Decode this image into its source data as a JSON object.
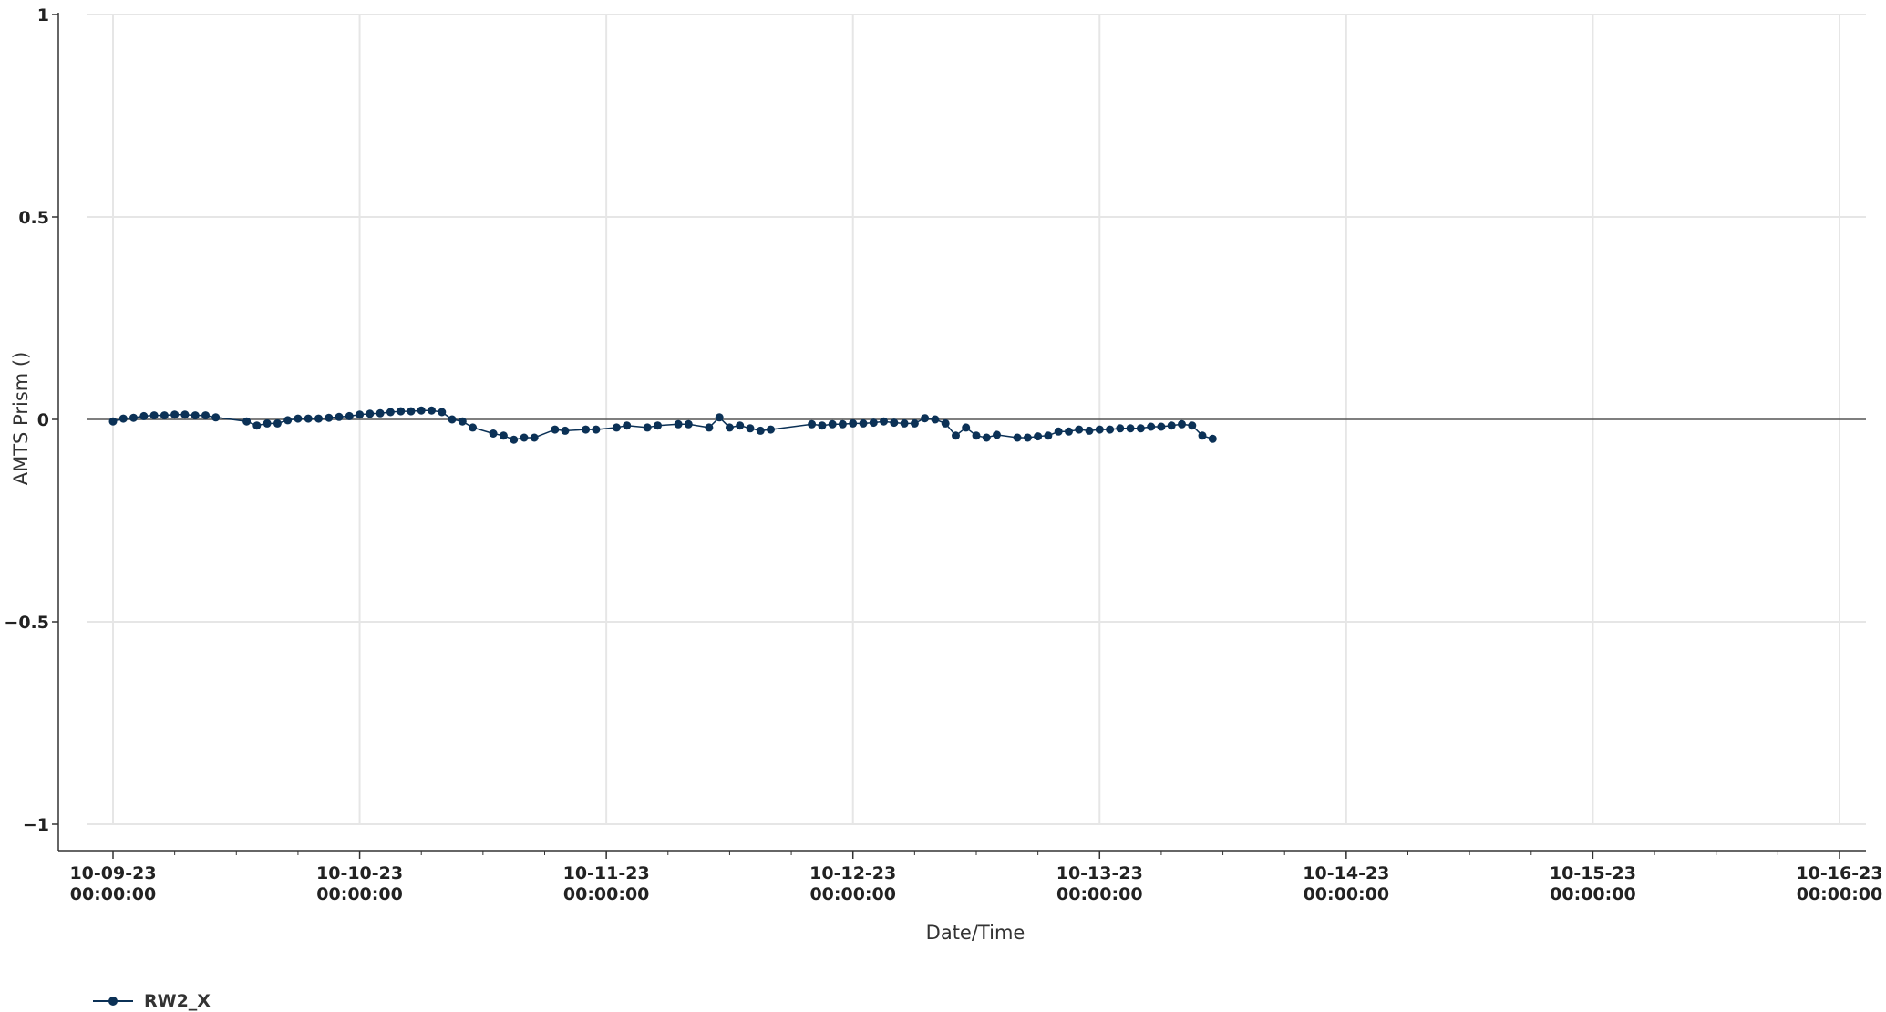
{
  "chart_data": {
    "type": "line",
    "xlabel": "Date/Time",
    "ylabel": "AMTS Prism ()",
    "xlim": [
      "10-09-23 00:00:00",
      "10-16-23 00:00:00"
    ],
    "ylim": [
      -1,
      1
    ],
    "y_ticks": [
      1,
      0.5,
      0,
      -0.5,
      -1
    ],
    "y_tick_labels": [
      "1",
      "0.5",
      "0",
      "−0.5",
      "−1"
    ],
    "x_ticks": [
      {
        "date": "10-09-23",
        "time": "00:00:00"
      },
      {
        "date": "10-10-23",
        "time": "00:00:00"
      },
      {
        "date": "10-11-23",
        "time": "00:00:00"
      },
      {
        "date": "10-12-23",
        "time": "00:00:00"
      },
      {
        "date": "10-13-23",
        "time": "00:00:00"
      },
      {
        "date": "10-14-23",
        "time": "00:00:00"
      },
      {
        "date": "10-15-23",
        "time": "00:00:00"
      },
      {
        "date": "10-16-23",
        "time": "00:00:00"
      }
    ],
    "grid": true,
    "zero_line": true,
    "legend_position": "bottom-left",
    "series": [
      {
        "name": "RW2_X",
        "color": "#0b3156",
        "points": [
          [
            "10-09-23 00:00",
            -0.005
          ],
          [
            "10-09-23 01:00",
            0.002
          ],
          [
            "10-09-23 02:00",
            0.004
          ],
          [
            "10-09-23 03:00",
            0.008
          ],
          [
            "10-09-23 04:00",
            0.01
          ],
          [
            "10-09-23 05:00",
            0.01
          ],
          [
            "10-09-23 06:00",
            0.012
          ],
          [
            "10-09-23 07:00",
            0.012
          ],
          [
            "10-09-23 08:00",
            0.01
          ],
          [
            "10-09-23 09:00",
            0.01
          ],
          [
            "10-09-23 10:00",
            0.005
          ],
          [
            "10-09-23 13:00",
            -0.005
          ],
          [
            "10-09-23 14:00",
            -0.015
          ],
          [
            "10-09-23 15:00",
            -0.01
          ],
          [
            "10-09-23 16:00",
            -0.01
          ],
          [
            "10-09-23 17:00",
            -0.002
          ],
          [
            "10-09-23 18:00",
            0.002
          ],
          [
            "10-09-23 19:00",
            0.002
          ],
          [
            "10-09-23 20:00",
            0.002
          ],
          [
            "10-09-23 21:00",
            0.004
          ],
          [
            "10-09-23 22:00",
            0.006
          ],
          [
            "10-09-23 23:00",
            0.008
          ],
          [
            "10-10-23 00:00",
            0.012
          ],
          [
            "10-10-23 01:00",
            0.014
          ],
          [
            "10-10-23 02:00",
            0.015
          ],
          [
            "10-10-23 03:00",
            0.018
          ],
          [
            "10-10-23 04:00",
            0.02
          ],
          [
            "10-10-23 05:00",
            0.02
          ],
          [
            "10-10-23 06:00",
            0.022
          ],
          [
            "10-10-23 07:00",
            0.022
          ],
          [
            "10-10-23 08:00",
            0.018
          ],
          [
            "10-10-23 09:00",
            0.0
          ],
          [
            "10-10-23 10:00",
            -0.005
          ],
          [
            "10-10-23 11:00",
            -0.02
          ],
          [
            "10-10-23 13:00",
            -0.035
          ],
          [
            "10-10-23 14:00",
            -0.04
          ],
          [
            "10-10-23 15:00",
            -0.05
          ],
          [
            "10-10-23 16:00",
            -0.045
          ],
          [
            "10-10-23 17:00",
            -0.045
          ],
          [
            "10-10-23 19:00",
            -0.025
          ],
          [
            "10-10-23 20:00",
            -0.028
          ],
          [
            "10-10-23 22:00",
            -0.025
          ],
          [
            "10-10-23 23:00",
            -0.025
          ],
          [
            "10-11-23 01:00",
            -0.02
          ],
          [
            "10-11-23 02:00",
            -0.015
          ],
          [
            "10-11-23 04:00",
            -0.02
          ],
          [
            "10-11-23 05:00",
            -0.015
          ],
          [
            "10-11-23 07:00",
            -0.012
          ],
          [
            "10-11-23 08:00",
            -0.012
          ],
          [
            "10-11-23 10:00",
            -0.02
          ],
          [
            "10-11-23 11:00",
            0.005
          ],
          [
            "10-11-23 12:00",
            -0.02
          ],
          [
            "10-11-23 13:00",
            -0.015
          ],
          [
            "10-11-23 14:00",
            -0.022
          ],
          [
            "10-11-23 15:00",
            -0.028
          ],
          [
            "10-11-23 16:00",
            -0.025
          ],
          [
            "10-11-23 20:00",
            -0.012
          ],
          [
            "10-11-23 21:00",
            -0.015
          ],
          [
            "10-11-23 22:00",
            -0.012
          ],
          [
            "10-11-23 23:00",
            -0.012
          ],
          [
            "10-12-23 00:00",
            -0.01
          ],
          [
            "10-12-23 01:00",
            -0.01
          ],
          [
            "10-12-23 02:00",
            -0.008
          ],
          [
            "10-12-23 03:00",
            -0.005
          ],
          [
            "10-12-23 04:00",
            -0.008
          ],
          [
            "10-12-23 05:00",
            -0.01
          ],
          [
            "10-12-23 06:00",
            -0.01
          ],
          [
            "10-12-23 07:00",
            0.003
          ],
          [
            "10-12-23 08:00",
            0.0
          ],
          [
            "10-12-23 09:00",
            -0.01
          ],
          [
            "10-12-23 10:00",
            -0.04
          ],
          [
            "10-12-23 11:00",
            -0.02
          ],
          [
            "10-12-23 12:00",
            -0.04
          ],
          [
            "10-12-23 13:00",
            -0.045
          ],
          [
            "10-12-23 14:00",
            -0.038
          ],
          [
            "10-12-23 16:00",
            -0.045
          ],
          [
            "10-12-23 17:00",
            -0.045
          ],
          [
            "10-12-23 18:00",
            -0.042
          ],
          [
            "10-12-23 19:00",
            -0.04
          ],
          [
            "10-12-23 20:00",
            -0.03
          ],
          [
            "10-12-23 21:00",
            -0.03
          ],
          [
            "10-12-23 22:00",
            -0.025
          ],
          [
            "10-12-23 23:00",
            -0.028
          ],
          [
            "10-13-23 00:00",
            -0.025
          ],
          [
            "10-13-23 01:00",
            -0.025
          ],
          [
            "10-13-23 02:00",
            -0.022
          ],
          [
            "10-13-23 03:00",
            -0.022
          ],
          [
            "10-13-23 04:00",
            -0.022
          ],
          [
            "10-13-23 05:00",
            -0.018
          ],
          [
            "10-13-23 06:00",
            -0.018
          ],
          [
            "10-13-23 07:00",
            -0.015
          ],
          [
            "10-13-23 08:00",
            -0.012
          ],
          [
            "10-13-23 09:00",
            -0.015
          ],
          [
            "10-13-23 10:00",
            -0.04
          ],
          [
            "10-13-23 11:00",
            -0.048
          ]
        ]
      }
    ]
  }
}
